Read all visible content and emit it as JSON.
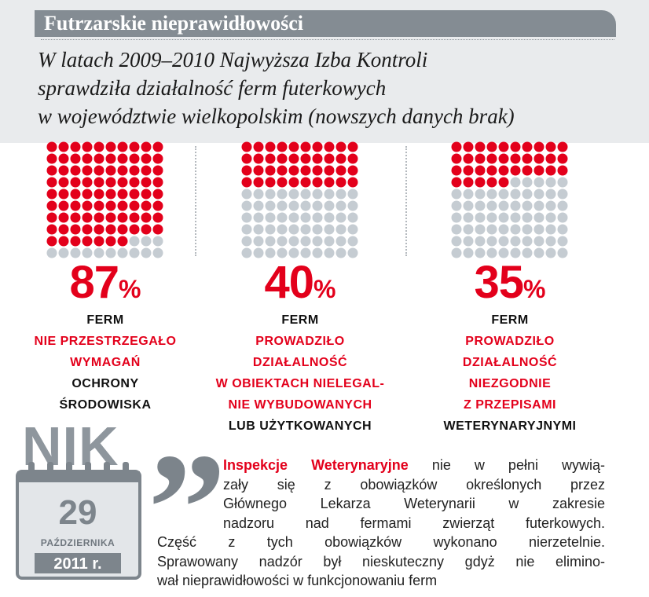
{
  "title": "Futrzarskie nieprawidłowości",
  "subtitle": [
    "W latach 2009–2010 Najwyższa Izba Kontroli",
    "sprawdziła działalność ferm futerkowych",
    "w województwie wielkopolskim (nowszych danych brak)"
  ],
  "chart_data": {
    "type": "dot-grid",
    "colors": {
      "filled": "#e3001b",
      "empty": "#c5ccd2"
    },
    "panels": [
      {
        "value": 87,
        "value_text": "87",
        "unit": "%",
        "lines": [
          {
            "text": "FERM",
            "color": "black"
          },
          {
            "text": "NIE PRZESTRZEGAŁO",
            "color": "red"
          },
          {
            "text": "WYMAGAŃ",
            "color": "red"
          },
          {
            "text": "OCHRONY",
            "color": "black"
          },
          {
            "text": "ŚRODOWISKA",
            "color": "black"
          }
        ]
      },
      {
        "value": 40,
        "value_text": "40",
        "unit": "%",
        "lines": [
          {
            "text": "FERM",
            "color": "black"
          },
          {
            "text": "PROWADZIŁO",
            "color": "red"
          },
          {
            "text": "DZIAŁALNOŚĆ",
            "color": "red"
          },
          {
            "text": "W OBIEKTACH NIELEGAL-",
            "color": "red"
          },
          {
            "text": "NIE WYBUDOWANYCH",
            "color": "red"
          },
          {
            "text": "LUB UŻYTKOWANYCH",
            "color": "black"
          }
        ]
      },
      {
        "value": 35,
        "value_text": "35",
        "unit": "%",
        "lines": [
          {
            "text": "FERM",
            "color": "black"
          },
          {
            "text": "PROWADZIŁO",
            "color": "red"
          },
          {
            "text": "DZIAŁALNOŚĆ",
            "color": "red"
          },
          {
            "text": "NIEZGODNIE",
            "color": "red"
          },
          {
            "text": "Z PRZEPISAMI",
            "color": "red"
          },
          {
            "text": "WETERYNARYJNYMI",
            "color": "black"
          }
        ]
      }
    ]
  },
  "source": {
    "logo": "NIK",
    "day": "29",
    "month": "PAŹDZIERNIKA",
    "year": "2011 r."
  },
  "quote": {
    "highlight": "Inspekcje Weterynaryjne",
    "lines": [
      " nie w pełni wywią-",
      "zały się z obowiązków określonych przez",
      "Głównego Lekarza Weterynarii w zakresie",
      "nadzoru nad fermami zwierząt futerkowych.",
      "Część z tych obowiązków wykonano nierzetelnie.",
      "Sprawowany nadzór był nieskuteczny gdyż nie elimino-",
      "wał nieprawidłowości w funkcjonowaniu ferm"
    ]
  }
}
